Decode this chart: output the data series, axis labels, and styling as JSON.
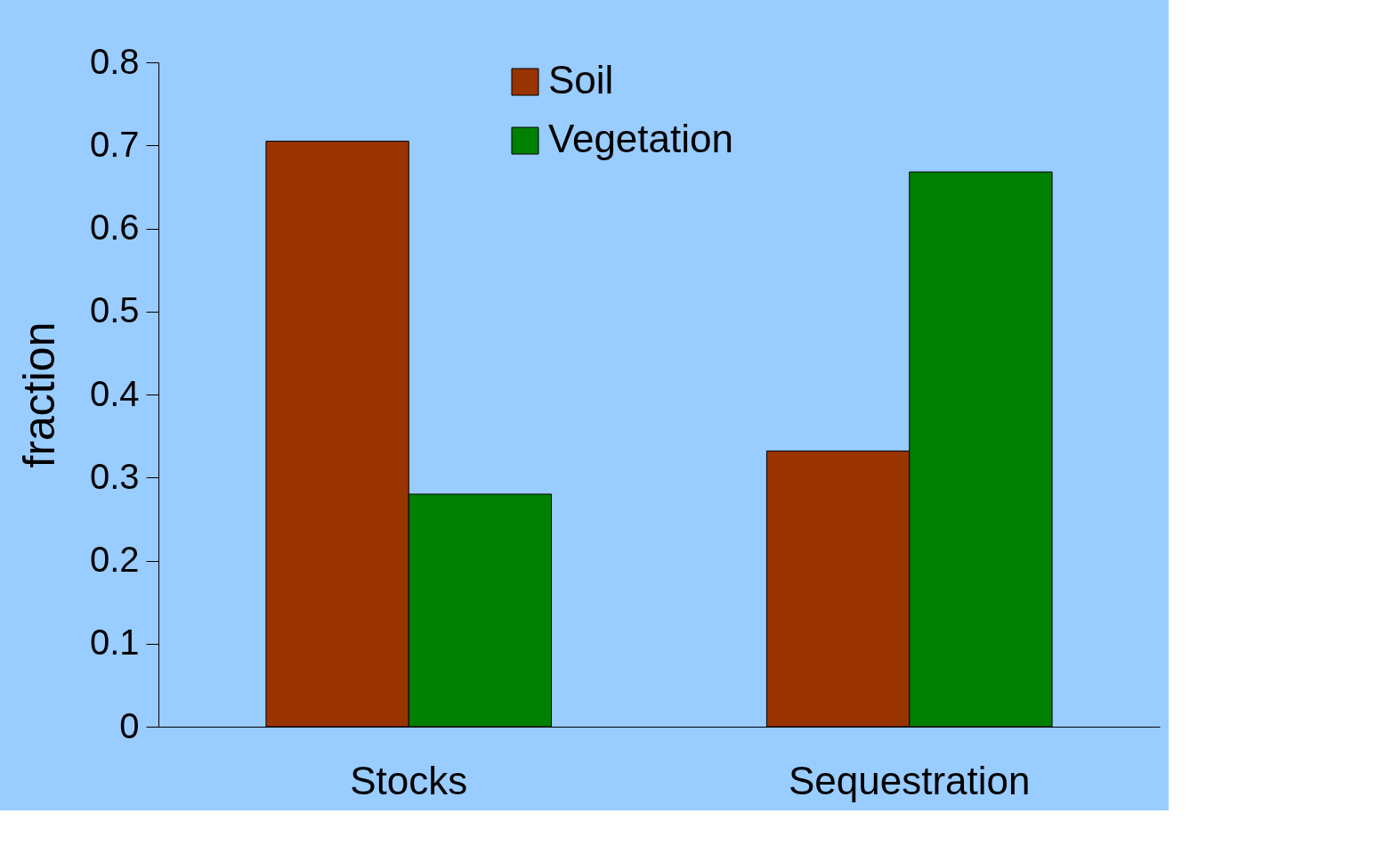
{
  "chart_data": {
    "type": "bar",
    "ylabel": "fraction",
    "categories": [
      "Stocks",
      "Sequestration"
    ],
    "series": [
      {
        "name": "Soil",
        "color": "#993300",
        "values": [
          0.705,
          0.332
        ]
      },
      {
        "name": "Vegetation",
        "color": "#008000",
        "values": [
          0.28,
          0.668
        ]
      }
    ],
    "ylim": [
      0,
      0.8
    ],
    "yticks": [
      0,
      0.1,
      0.2,
      0.3,
      0.4,
      0.5,
      0.6,
      0.7,
      0.8
    ],
    "grid": false,
    "legend": "top"
  }
}
